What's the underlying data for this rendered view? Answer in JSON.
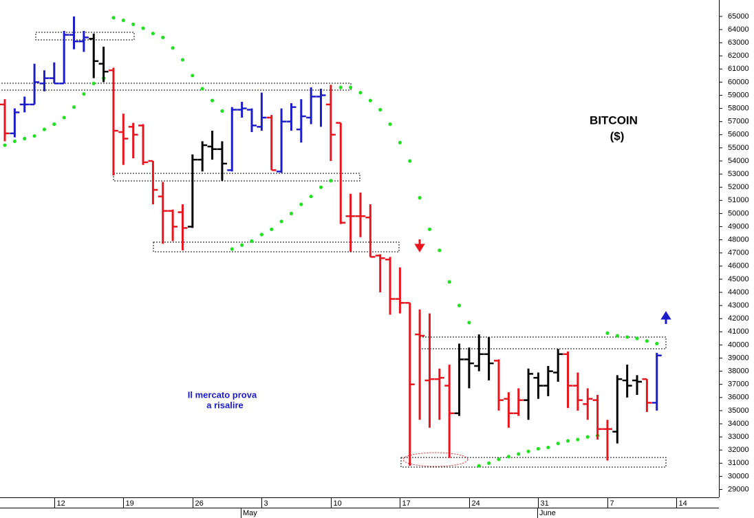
{
  "chart_data": {
    "type": "ohlc",
    "title": "BITCOIN",
    "subtitle": "($)",
    "annotation": [
      "Il mercato prova",
      "a risalire"
    ],
    "months": [
      "May",
      "June"
    ],
    "categories": [
      null,
      null,
      null,
      null,
      null,
      "12",
      null,
      null,
      null,
      null,
      null,
      null,
      "19",
      null,
      null,
      null,
      null,
      null,
      null,
      "26",
      null,
      null,
      null,
      null,
      null,
      null,
      "3",
      null,
      null,
      null,
      null,
      null,
      null,
      "10",
      null,
      null,
      null,
      null,
      null,
      null,
      "17",
      null,
      null,
      null,
      null,
      null,
      null,
      "24",
      null,
      null,
      null,
      null,
      null,
      null,
      "31",
      null,
      null,
      null,
      null,
      null,
      null,
      "7",
      null,
      null,
      null,
      null,
      null,
      null,
      "14"
    ],
    "open": [
      58300,
      56100,
      58300,
      58300,
      59900,
      60300,
      59900,
      63600,
      63100,
      63300,
      61400,
      60900,
      56200,
      56600,
      56700,
      54000,
      51300,
      50200,
      50100,
      49000,
      54100,
      55100,
      54900,
      53300,
      57900,
      57900,
      56600,
      57300,
      53200,
      57000,
      56400,
      57300,
      58900,
      58300,
      56900,
      49800,
      49800,
      49700,
      46800,
      46500,
      43500,
      43200,
      40800,
      37300,
      37400,
      36900,
      34800,
      38900,
      38400,
      39300,
      38800,
      35900,
      34800,
      35800,
      37500,
      36900,
      37900,
      39300,
      36900,
      35500,
      35800,
      33600,
      33400,
      37300,
      37300,
      37400,
      35600,
      null,
      null
    ],
    "high": [
      58700,
      58000,
      58900,
      61400,
      60900,
      61500,
      63900,
      65000,
      63900,
      63700,
      62700,
      61100,
      57600,
      56900,
      56800,
      54000,
      52400,
      50300,
      50700,
      54500,
      55500,
      56300,
      55500,
      58100,
      58500,
      58000,
      59200,
      57500,
      58000,
      58400,
      58700,
      59600,
      59500,
      59800,
      56900,
      51500,
      51600,
      50700,
      46900,
      46700,
      45900,
      43200,
      42700,
      42400,
      38200,
      38500,
      40100,
      39800,
      40800,
      40600,
      38900,
      36400,
      36700,
      38200,
      37900,
      38400,
      39700,
      39500,
      37900,
      36700,
      36200,
      34300,
      37700,
      38500,
      37700,
      37400,
      39400,
      null,
      null
    ],
    "low": [
      55500,
      55800,
      57700,
      58300,
      59300,
      59900,
      59900,
      62500,
      62300,
      60300,
      60000,
      52900,
      53700,
      54200,
      53700,
      50700,
      47700,
      47900,
      47200,
      48900,
      53200,
      54100,
      52500,
      53200,
      57300,
      56200,
      56300,
      53300,
      53100,
      56300,
      55400,
      56800,
      56600,
      54000,
      49200,
      47100,
      48200,
      46700,
      44000,
      42300,
      42400,
      30800,
      34300,
      33700,
      34300,
      31400,
      34600,
      36700,
      38000,
      37300,
      35000,
      33700,
      34600,
      34300,
      35900,
      36100,
      37200,
      35200,
      35000,
      34300,
      32800,
      31200,
      32500,
      36000,
      36200,
      34900,
      35000,
      null,
      null
    ],
    "close": [
      56100,
      57700,
      58300,
      60000,
      60300,
      59900,
      63600,
      63100,
      63400,
      61600,
      60800,
      56300,
      55700,
      56000,
      53900,
      51800,
      50200,
      49000,
      48900,
      54100,
      55200,
      54900,
      53800,
      57900,
      58000,
      56700,
      57300,
      53300,
      57000,
      58100,
      57400,
      58900,
      59000,
      56000,
      49300,
      49800,
      49800,
      46700,
      46600,
      43500,
      43200,
      37000,
      40700,
      37400,
      37500,
      34800,
      38900,
      38600,
      39300,
      38600,
      35800,
      34800,
      35800,
      37800,
      36900,
      38000,
      39300,
      36900,
      35800,
      35900,
      33600,
      33600,
      37400,
      36900,
      37200,
      35600,
      39200,
      null,
      null
    ],
    "colors": [
      "#e8141e",
      "#1c1cc8",
      "#1c1cc8",
      "#1c1cc8",
      "#1c1cc8",
      "#1c1cc8",
      "#1c1cc8",
      "#1c1cc8",
      "#1c1cc8",
      "#000000",
      "#000000",
      "#e8141e",
      "#e8141e",
      "#e8141e",
      "#e8141e",
      "#e8141e",
      "#e8141e",
      "#e8141e",
      "#e8141e",
      "#000000",
      "#000000",
      "#000000",
      "#000000",
      "#1c1cc8",
      "#1c1cc8",
      "#1c1cc8",
      "#1c1cc8",
      "#e8141e",
      "#1c1cc8",
      "#1c1cc8",
      "#1c1cc8",
      "#1c1cc8",
      "#1c1cc8",
      "#e8141e",
      "#e8141e",
      "#e8141e",
      "#e8141e",
      "#e8141e",
      "#e8141e",
      "#e8141e",
      "#e8141e",
      "#e8141e",
      "#e8141e",
      "#e8141e",
      "#e8141e",
      "#e8141e",
      "#000000",
      "#000000",
      "#000000",
      "#000000",
      "#e8141e",
      "#e8141e",
      "#e8141e",
      "#000000",
      "#000000",
      "#000000",
      "#000000",
      "#e8141e",
      "#e8141e",
      "#e8141e",
      "#e8141e",
      "#e8141e",
      "#000000",
      "#000000",
      "#000000",
      "#e8141e",
      "#1c1cc8",
      null,
      null
    ],
    "psar": {
      "color": "#22e022",
      "values": [
        55200,
        55500,
        55700,
        55900,
        56400,
        56800,
        57300,
        58100,
        59100,
        59900,
        60300,
        64900,
        64700,
        64400,
        64100,
        63700,
        63400,
        62600,
        61700,
        60500,
        59500,
        58600,
        57800,
        47300,
        47600,
        47900,
        48400,
        48800,
        49400,
        50000,
        50700,
        51300,
        52000,
        52500,
        59600,
        59600,
        59200,
        58600,
        57900,
        56800,
        55400,
        54000,
        51200,
        48800,
        47200,
        44800,
        43000,
        41700,
        30800,
        31000,
        31300,
        31500,
        31700,
        31900,
        32100,
        32200,
        32500,
        32700,
        32800,
        33000,
        33100,
        40900,
        40700,
        40600,
        40500,
        40300,
        40100,
        null,
        null
      ]
    },
    "ylim": [
      28400,
      66250
    ],
    "yticks": [
      29000,
      30000,
      31000,
      32000,
      33000,
      34000,
      35000,
      36000,
      37000,
      38000,
      39000,
      40000,
      41000,
      42000,
      43000,
      44000,
      45000,
      46000,
      47000,
      48000,
      49000,
      50000,
      51000,
      52000,
      53000,
      54000,
      55000,
      56000,
      57000,
      58000,
      59000,
      60000,
      61000,
      62000,
      63000,
      64000,
      65000
    ]
  }
}
